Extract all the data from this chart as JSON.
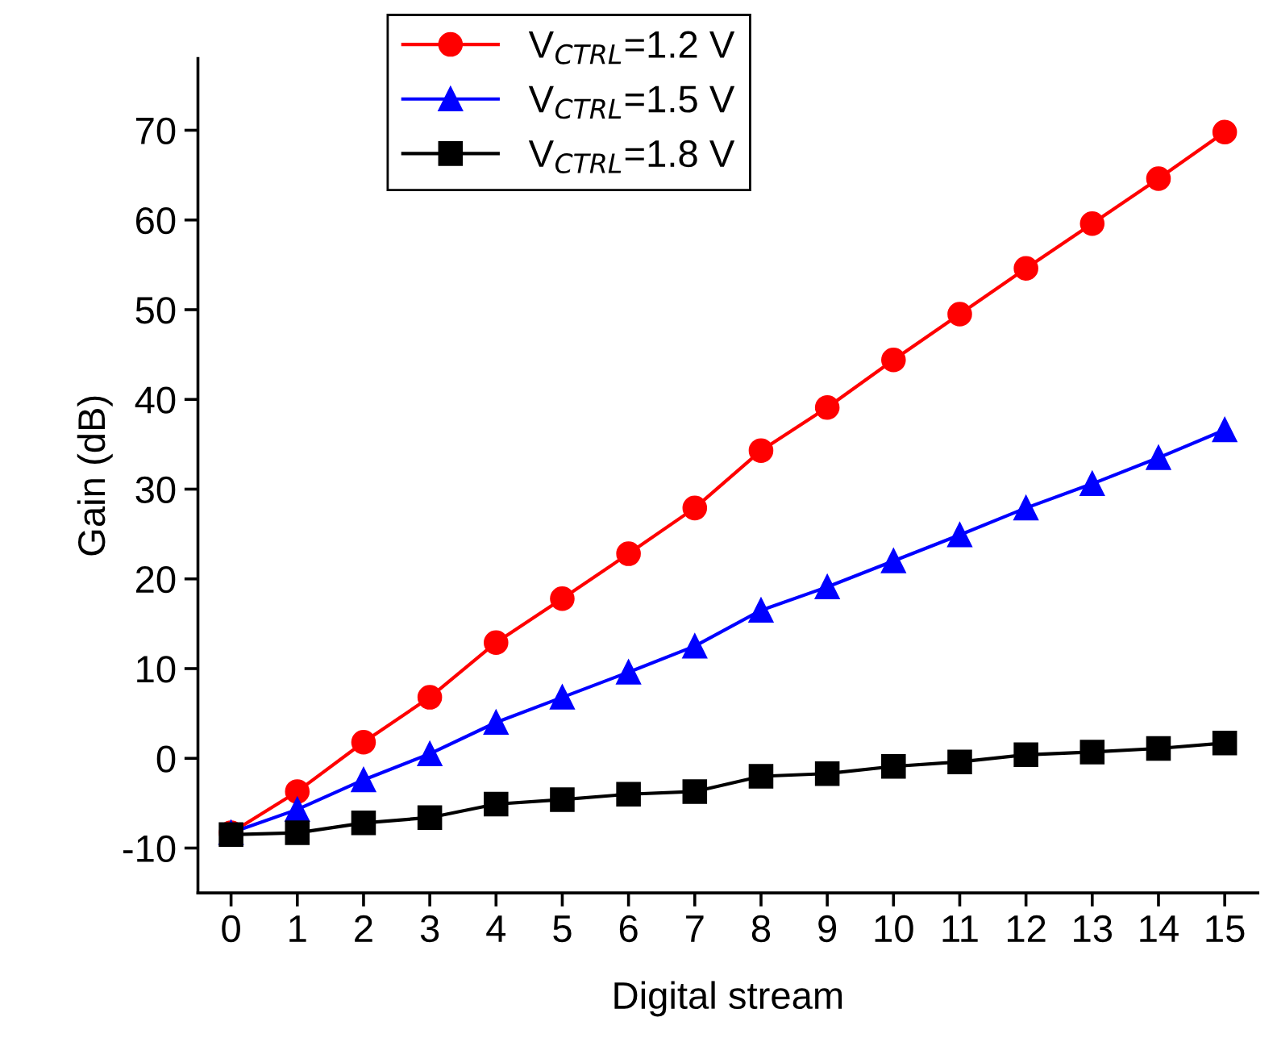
{
  "chart_data": {
    "type": "line",
    "xlabel": "Digital stream",
    "ylabel": "Gain (dB)",
    "categories": [
      "0",
      "1",
      "2",
      "3",
      "4",
      "5",
      "6",
      "7",
      "8",
      "9",
      "10",
      "11",
      "12",
      "13",
      "14",
      "15"
    ],
    "series": [
      {
        "name": "V$_{CTRL}$=1.2 V",
        "color": "#ff0000",
        "marker": "circle",
        "values": [
          -8.3,
          -3.7,
          1.8,
          6.8,
          12.9,
          17.8,
          22.8,
          27.9,
          34.3,
          39.1,
          44.4,
          49.5,
          54.6,
          59.6,
          64.6,
          69.8
        ]
      },
      {
        "name": "V$_{CTRL}$=1.5 V",
        "color": "#0000ff",
        "marker": "triangle",
        "values": [
          -8.3,
          -5.7,
          -2.4,
          0.5,
          4.0,
          6.8,
          9.6,
          12.5,
          16.5,
          19.1,
          22.0,
          24.9,
          27.9,
          30.6,
          33.5,
          36.6
        ]
      },
      {
        "name": "V$_{CTRL}$=1.8 V",
        "color": "#000000",
        "marker": "square",
        "values": [
          -8.5,
          -8.3,
          -7.2,
          -6.6,
          -5.1,
          -4.6,
          -4.0,
          -3.7,
          -2.0,
          -1.7,
          -0.9,
          -0.4,
          0.4,
          0.7,
          1.1,
          1.7
        ]
      }
    ],
    "ylim": [
      -15,
      78
    ],
    "yticks": [
      -10,
      0,
      10,
      20,
      30,
      40,
      50,
      60,
      70
    ],
    "grid": false,
    "legend": "top",
    "line_style": "solid"
  }
}
